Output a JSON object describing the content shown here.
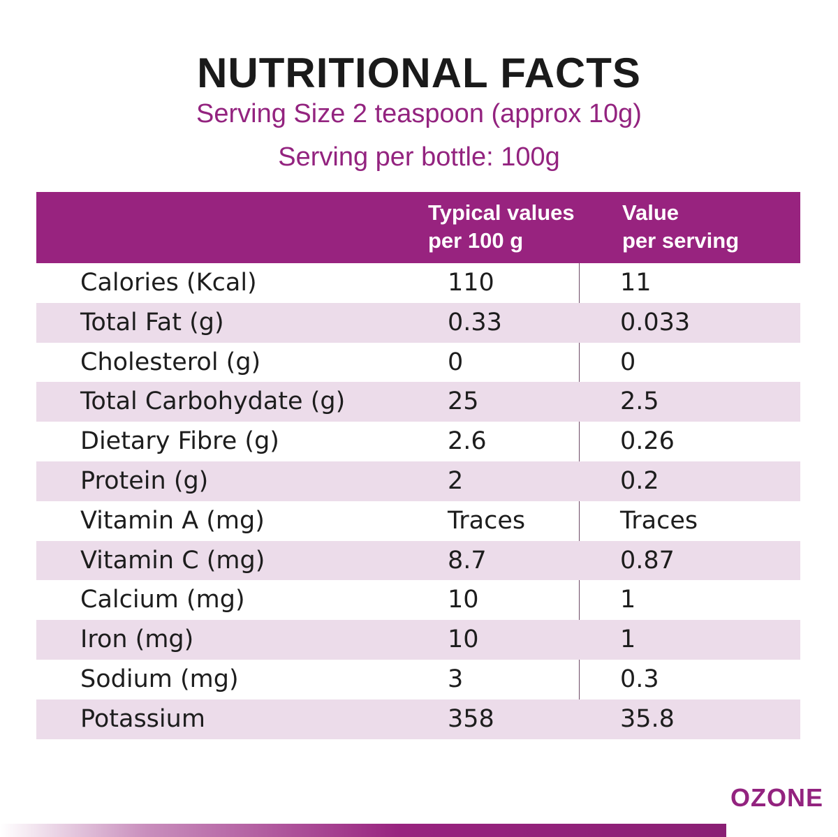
{
  "title": "NUTRITIONAL FACTS",
  "serving_size": "Serving Size 2 teaspoon (approx 10g)",
  "serving_per_bottle": "Serving per bottle: 100g",
  "table": {
    "headers": {
      "col2_line1": "Typical values",
      "col2_line2": "per 100 g",
      "col3_line1": "Value",
      "col3_line2": "per serving"
    },
    "rows": [
      {
        "nutrient": "Calories (Kcal)",
        "per_100g": "110",
        "per_serving": "11"
      },
      {
        "nutrient": "Total Fat (g)",
        "per_100g": "0.33",
        "per_serving": "0.033"
      },
      {
        "nutrient": "Cholesterol (g)",
        "per_100g": "0",
        "per_serving": "0"
      },
      {
        "nutrient": "Total Carbohydate (g)",
        "per_100g": "25",
        "per_serving": "2.5"
      },
      {
        "nutrient": "Dietary Fibre (g)",
        "per_100g": "2.6",
        "per_serving": "0.26"
      },
      {
        "nutrient": "Protein (g)",
        "per_100g": "2",
        "per_serving": "0.2"
      },
      {
        "nutrient": "Vitamin A (mg)",
        "per_100g": "Traces",
        "per_serving": "Traces"
      },
      {
        "nutrient": "Vitamin C (mg)",
        "per_100g": "8.7",
        "per_serving": "0.87"
      },
      {
        "nutrient": "Calcium (mg)",
        "per_100g": "10",
        "per_serving": "1"
      },
      {
        "nutrient": "Iron (mg)",
        "per_100g": "10",
        "per_serving": "1"
      },
      {
        "nutrient": "Sodium (mg)",
        "per_100g": "3",
        "per_serving": "0.3"
      },
      {
        "nutrient": "Potassium",
        "per_100g": "358",
        "per_serving": "35.8"
      }
    ]
  },
  "brand": "OZONE",
  "colors": {
    "accent": "#98237f",
    "row_shade": "#ecdcea",
    "title": "#1a1a1a"
  }
}
